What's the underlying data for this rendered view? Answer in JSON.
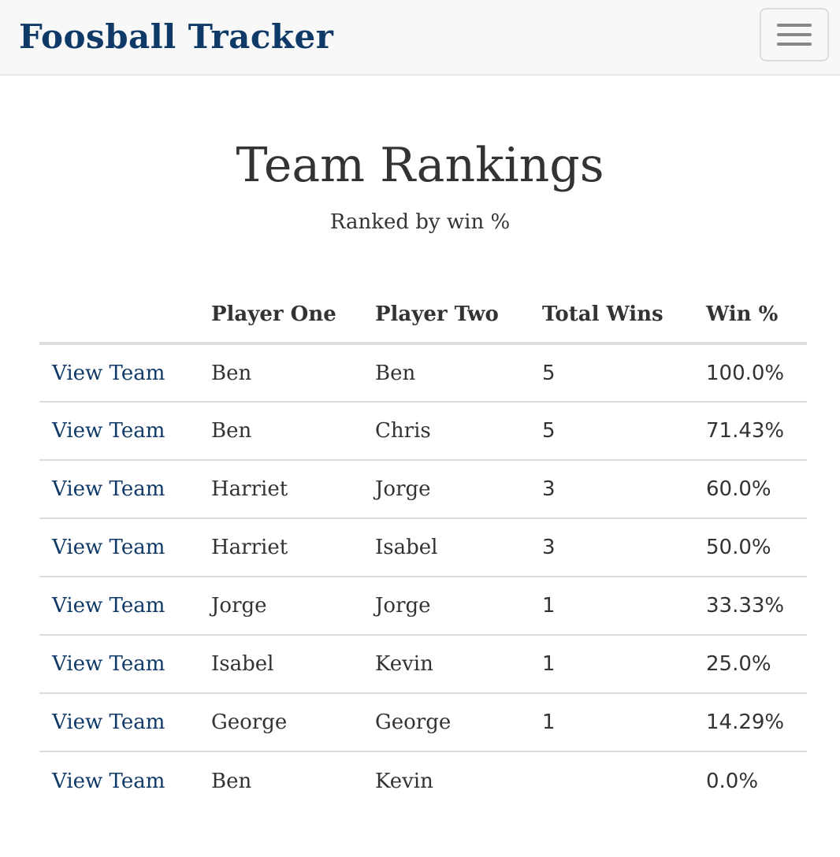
{
  "navbar": {
    "brand": "Foosball Tracker",
    "toggle_icon": "hamburger-menu-icon"
  },
  "page": {
    "title": "Team Rankings",
    "subtitle": "Ranked by win %"
  },
  "table": {
    "headers": [
      "",
      "Player One",
      "Player Two",
      "Total Wins",
      "Win %"
    ],
    "rows": [
      {
        "link": "View Team",
        "player_one": "Ben",
        "player_two": "Ben",
        "total_wins": "5",
        "win_pct": "100.0%"
      },
      {
        "link": "View Team",
        "player_one": "Ben",
        "player_two": "Chris",
        "total_wins": "5",
        "win_pct": "71.43%"
      },
      {
        "link": "View Team",
        "player_one": "Harriet",
        "player_two": "Jorge",
        "total_wins": "3",
        "win_pct": "60.0%"
      },
      {
        "link": "View Team",
        "player_one": "Harriet",
        "player_two": "Isabel",
        "total_wins": "3",
        "win_pct": "50.0%"
      },
      {
        "link": "View Team",
        "player_one": "Jorge",
        "player_two": "Jorge",
        "total_wins": "1",
        "win_pct": "33.33%"
      },
      {
        "link": "View Team",
        "player_one": "Isabel",
        "player_two": "Kevin",
        "total_wins": "1",
        "win_pct": "25.0%"
      },
      {
        "link": "View Team",
        "player_one": "George",
        "player_two": "George",
        "total_wins": "1",
        "win_pct": "14.29%"
      },
      {
        "link": "View Team",
        "player_one": "Ben",
        "player_two": "Kevin",
        "total_wins": "",
        "win_pct": "0.0%"
      }
    ]
  },
  "colors": {
    "brand": "#0f3a68",
    "link": "#0f3a68",
    "navbar_bg": "#f8f8f8",
    "text": "#333333",
    "border": "#dddddd"
  }
}
